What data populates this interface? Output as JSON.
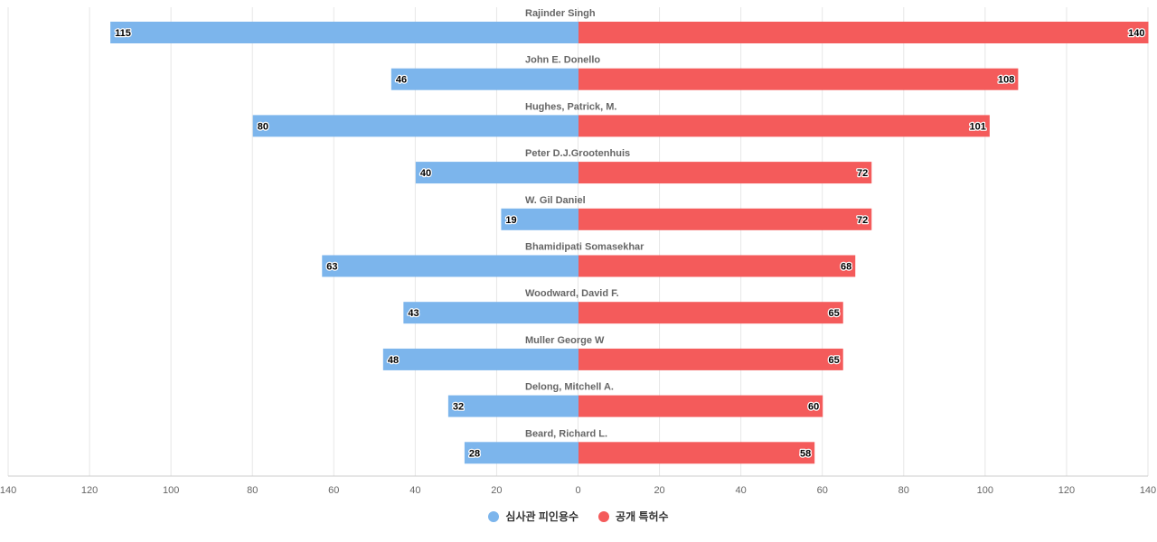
{
  "chart_data": {
    "type": "bar",
    "orientation": "horizontal-diverging",
    "categories": [
      "Rajinder Singh",
      "John E. Donello",
      "Hughes, Patrick, M.",
      "Peter D.J.Grootenhuis",
      "W. Gil Daniel",
      "Bhamidipati Somasekhar",
      "Woodward, David F.",
      "Muller George W",
      "Delong, Mitchell A.",
      "Beard, Richard L."
    ],
    "series": [
      {
        "name": "심사관 피인용수",
        "color": "#7cb5ec",
        "side": "left",
        "values": [
          115,
          46,
          80,
          40,
          19,
          63,
          43,
          48,
          32,
          28
        ]
      },
      {
        "name": "공개 특허수",
        "color": "#f45b5b",
        "side": "right",
        "values": [
          140,
          108,
          101,
          72,
          72,
          68,
          65,
          65,
          60,
          58
        ]
      }
    ],
    "xlim": [
      -140,
      140
    ],
    "x_ticks": [
      "140",
      "120",
      "100",
      "80",
      "60",
      "40",
      "20",
      "0",
      "20",
      "40",
      "60",
      "80",
      "100",
      "120",
      "140"
    ],
    "grid": true,
    "legend_position": "bottom-center"
  }
}
